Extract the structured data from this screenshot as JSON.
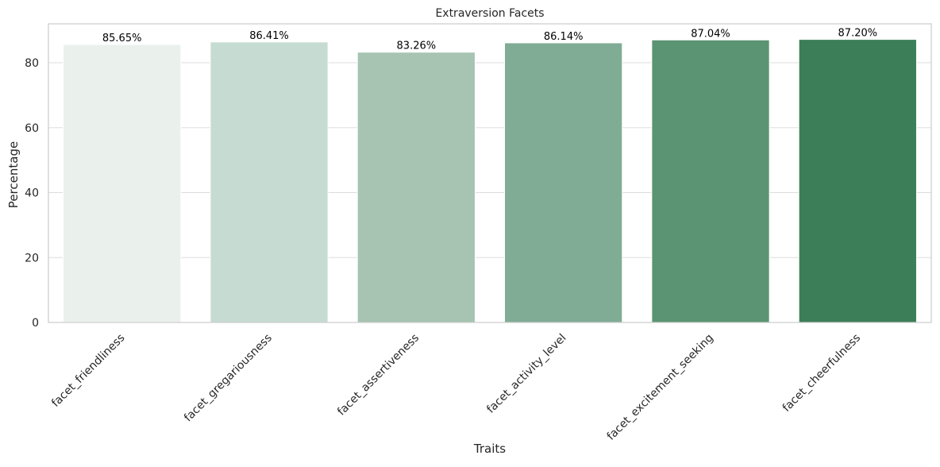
{
  "chart_data": {
    "type": "bar",
    "title": "Extraversion Facets",
    "xlabel": "Traits",
    "ylabel": "Percentage",
    "categories": [
      "facet_friendliness",
      "facet_gregariousness",
      "facet_assertiveness",
      "facet_activity_level",
      "facet_excitement_seeking",
      "facet_cheerfulness"
    ],
    "values": [
      85.65,
      86.41,
      83.26,
      86.14,
      87.04,
      87.2
    ],
    "data_labels": [
      "85.65%",
      "86.41%",
      "83.26%",
      "86.14%",
      "87.04%",
      "87.20%"
    ],
    "ylim": [
      0,
      92
    ],
    "yticks": [
      0,
      20,
      40,
      60,
      80
    ],
    "ytick_labels": [
      "0",
      "20",
      "40",
      "60",
      "80"
    ],
    "grid": "horizontal",
    "colors": [
      "#eaf1ed",
      "#c6dcd2",
      "#a6c4b1",
      "#80ac95",
      "#5b9473",
      "#3b7e57"
    ]
  }
}
